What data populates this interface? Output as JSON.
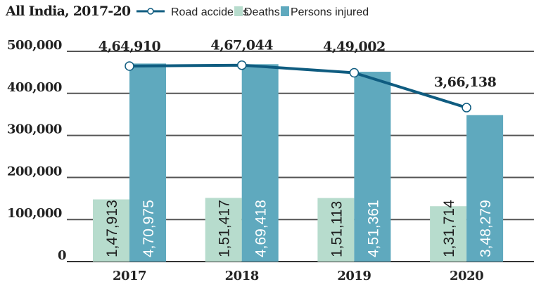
{
  "chart_data": {
    "type": "bar",
    "title": "All India, 2017-20",
    "categories": [
      "2017",
      "2018",
      "2019",
      "2020"
    ],
    "series": [
      {
        "name": "Deaths",
        "kind": "bar",
        "values": [
          147913,
          151417,
          151113,
          131714
        ],
        "labels": [
          "1,47,913",
          "1,51,417",
          "1,51,113",
          "1,31,714"
        ],
        "color": "#b7dccd"
      },
      {
        "name": "Persons injured",
        "kind": "bar",
        "values": [
          470975,
          469418,
          451361,
          348279
        ],
        "labels": [
          "4,70,975",
          "4,69,418",
          "4,51,361",
          "3,48,279"
        ],
        "color": "#5fa9be"
      },
      {
        "name": "Road accidents",
        "kind": "line",
        "values": [
          464910,
          467044,
          449002,
          366138
        ],
        "labels": [
          "4,64,910",
          "4,67,044",
          "4,49,002",
          "3,66,138"
        ],
        "color": "#0f5c80"
      }
    ],
    "yticks": [
      "0",
      "100,000",
      "200,000",
      "300,000",
      "400,000",
      "500,000"
    ],
    "ylim": [
      0,
      500000
    ],
    "xlabel": "",
    "ylabel": "",
    "grid": true,
    "legend": "top"
  }
}
